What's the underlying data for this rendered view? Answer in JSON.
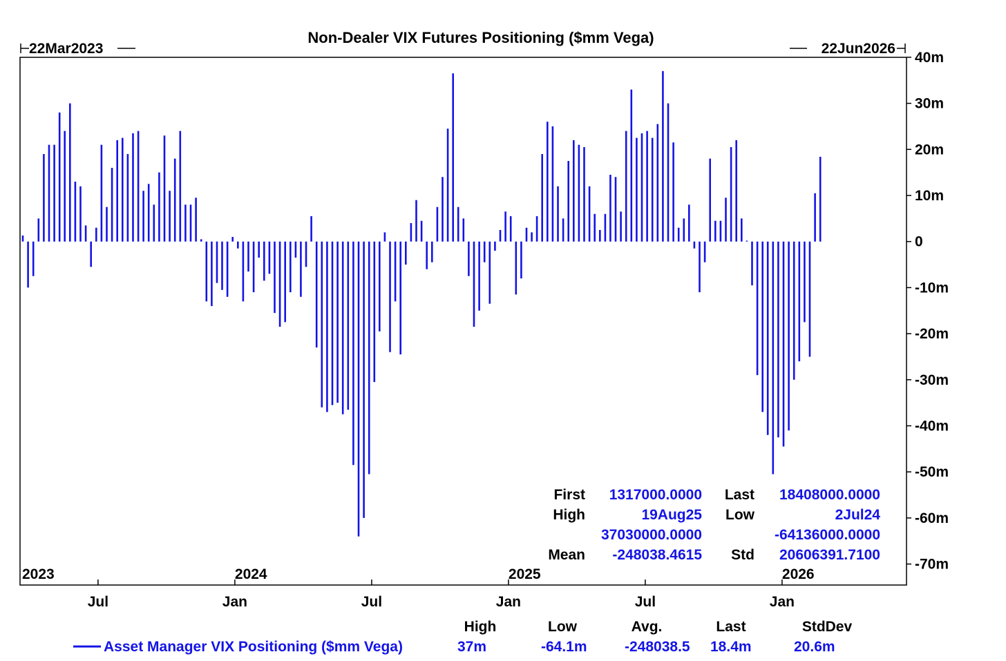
{
  "chart_data": {
    "type": "bar",
    "title": "Non-Dealer VIX Futures Positioning ($mm Vega)",
    "date_start": "22Mar2023",
    "date_end": "22Jun2026",
    "series_name": "Asset Manager VIX Positioning ($mm Vega)",
    "color": "#1414e6",
    "unit": "$mm Vega",
    "ylim": [
      -70,
      40
    ],
    "y_ticks": [
      {
        "v": 40,
        "label": "40m"
      },
      {
        "v": 30,
        "label": "30m"
      },
      {
        "v": 20,
        "label": "20m"
      },
      {
        "v": 10,
        "label": "10m"
      },
      {
        "v": 0,
        "label": "0"
      },
      {
        "v": -10,
        "label": "-10m"
      },
      {
        "v": -20,
        "label": "-20m"
      },
      {
        "v": -30,
        "label": "-30m"
      },
      {
        "v": -40,
        "label": "-40m"
      },
      {
        "v": -50,
        "label": "-50m"
      },
      {
        "v": -60,
        "label": "-60m"
      },
      {
        "v": -70,
        "label": "-70m"
      }
    ],
    "x_ticks": [
      {
        "m": 3.3,
        "label": "Jul"
      },
      {
        "m": 9.3,
        "label": "Jan"
      },
      {
        "m": 15.3,
        "label": "Jul"
      },
      {
        "m": 21.3,
        "label": "Jan"
      },
      {
        "m": 27.3,
        "label": "Jul"
      },
      {
        "m": 33.3,
        "label": "Jan"
      }
    ],
    "year_labels": [
      {
        "m": 0.1,
        "label": "2023"
      },
      {
        "m": 9.3,
        "label": "2024"
      },
      {
        "m": 21.3,
        "label": "2025"
      },
      {
        "m": 33.3,
        "label": "2026"
      }
    ],
    "x_range_months": [
      0,
      39
    ],
    "week_months": 0.2301,
    "values": [
      1.3,
      -10,
      -7.5,
      5,
      19,
      21,
      21,
      28,
      24,
      30,
      13,
      12,
      3.5,
      -5.5,
      3,
      21,
      7.5,
      16,
      22,
      22.5,
      19,
      23.5,
      24,
      11,
      12.5,
      8,
      15,
      23,
      11,
      18,
      24,
      8,
      8,
      9.5,
      0.5,
      -13,
      -14,
      -9,
      -10.5,
      -12,
      1,
      -1.5,
      -13,
      -6.5,
      -11,
      -3.5,
      -8.5,
      -7,
      -15.5,
      -18.5,
      -17.5,
      -11,
      -3.5,
      -12,
      -5.5,
      5.5,
      -23,
      -36,
      -37,
      -35.5,
      -35,
      -37.5,
      -36.5,
      -48.5,
      -64,
      -60,
      -50.5,
      -30.5,
      -19.5,
      2,
      -24,
      -13,
      -24.5,
      -5,
      4,
      9,
      4.5,
      -6,
      -4.5,
      7.5,
      14,
      24.5,
      36.5,
      7.5,
      5,
      -7.5,
      -18.5,
      -15,
      -4.5,
      -13.5,
      -2,
      2.5,
      6.5,
      5.5,
      -11.5,
      -8,
      3,
      2,
      5.5,
      19,
      26,
      25,
      12,
      5,
      17.5,
      22,
      21,
      20.5,
      12,
      6,
      2.5,
      6,
      14.5,
      14,
      6.5,
      24,
      33,
      22.5,
      23.5,
      24,
      22.5,
      25.5,
      37,
      30,
      21.5,
      3,
      5,
      8,
      -1.5,
      -11,
      -4.5,
      18,
      4.5,
      4.5,
      9.5,
      20.5,
      22,
      5,
      0.2,
      -9.5,
      -29,
      -37,
      -42,
      -50.5,
      -42.5,
      -44.5,
      -41,
      -30,
      -26,
      -17.5,
      -25,
      10.5,
      18.4
    ]
  },
  "stats": {
    "first_label": "First",
    "first_value": "1317000.0000",
    "last_label": "Last",
    "last_value": "18408000.0000",
    "high_label": "High",
    "high_date": "19Aug25",
    "high_value": "37030000.0000",
    "low_label": "Low",
    "low_date": "2Jul24",
    "low_value": "-64136000.0000",
    "mean_label": "Mean",
    "mean_value": "-248038.4615",
    "std_label": "Std",
    "std_value": "20606391.7100"
  },
  "legend": {
    "headers": {
      "high": "High",
      "low": "Low",
      "avg": "Avg.",
      "last": "Last",
      "std": "StdDev"
    },
    "values": {
      "high": "37m",
      "low": "-64.1m",
      "avg": "-248038.5",
      "last": "18.4m",
      "std": "20.6m"
    }
  }
}
